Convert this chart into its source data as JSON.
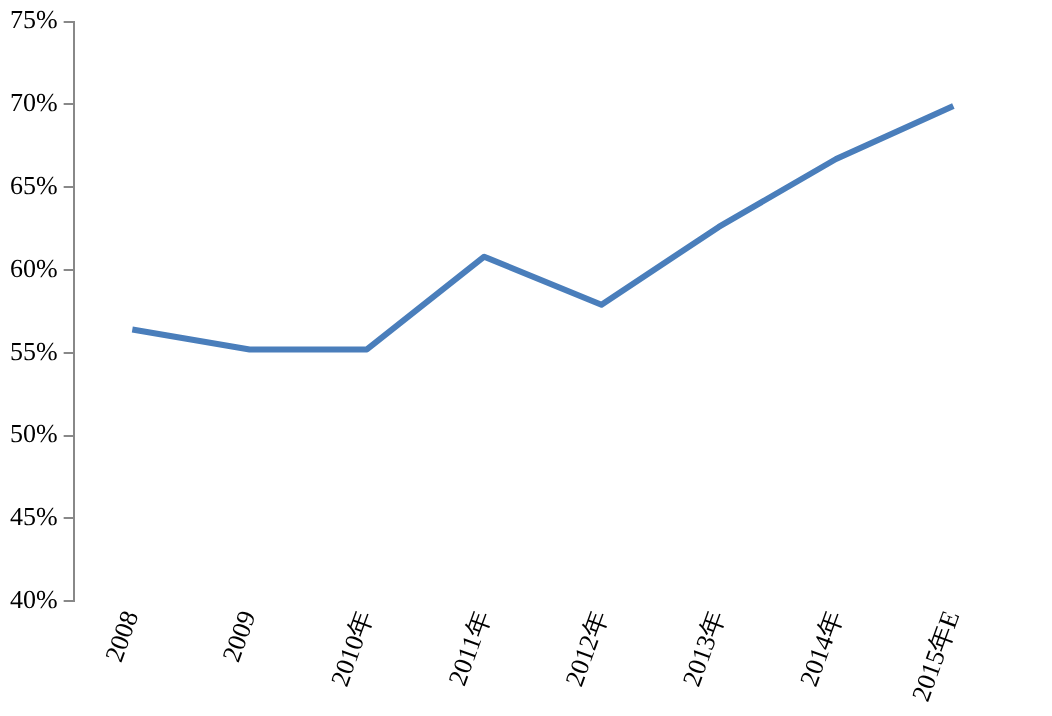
{
  "chart_data": {
    "type": "line",
    "categories": [
      "2008",
      "2009",
      "2010年",
      "2011年",
      "2012年",
      "2013年",
      "2014年",
      "2015年E"
    ],
    "series": [
      {
        "color": "#4a7ebb",
        "values": [
          56.4,
          55.2,
          55.2,
          60.8,
          57.9,
          62.6,
          66.7,
          69.9
        ]
      }
    ],
    "ylim": [
      40,
      75
    ],
    "yticks": [
      {
        "value": 40,
        "label": "40%"
      },
      {
        "value": 45,
        "label": "45%"
      },
      {
        "value": 50,
        "label": "50%"
      },
      {
        "value": 55,
        "label": "55%"
      },
      {
        "value": 60,
        "label": "60%"
      },
      {
        "value": 65,
        "label": "65%"
      },
      {
        "value": 70,
        "label": "70%"
      },
      {
        "value": 75,
        "label": "75%"
      }
    ],
    "grid": false,
    "legend": false,
    "marker": "none",
    "line_style": "solid"
  }
}
